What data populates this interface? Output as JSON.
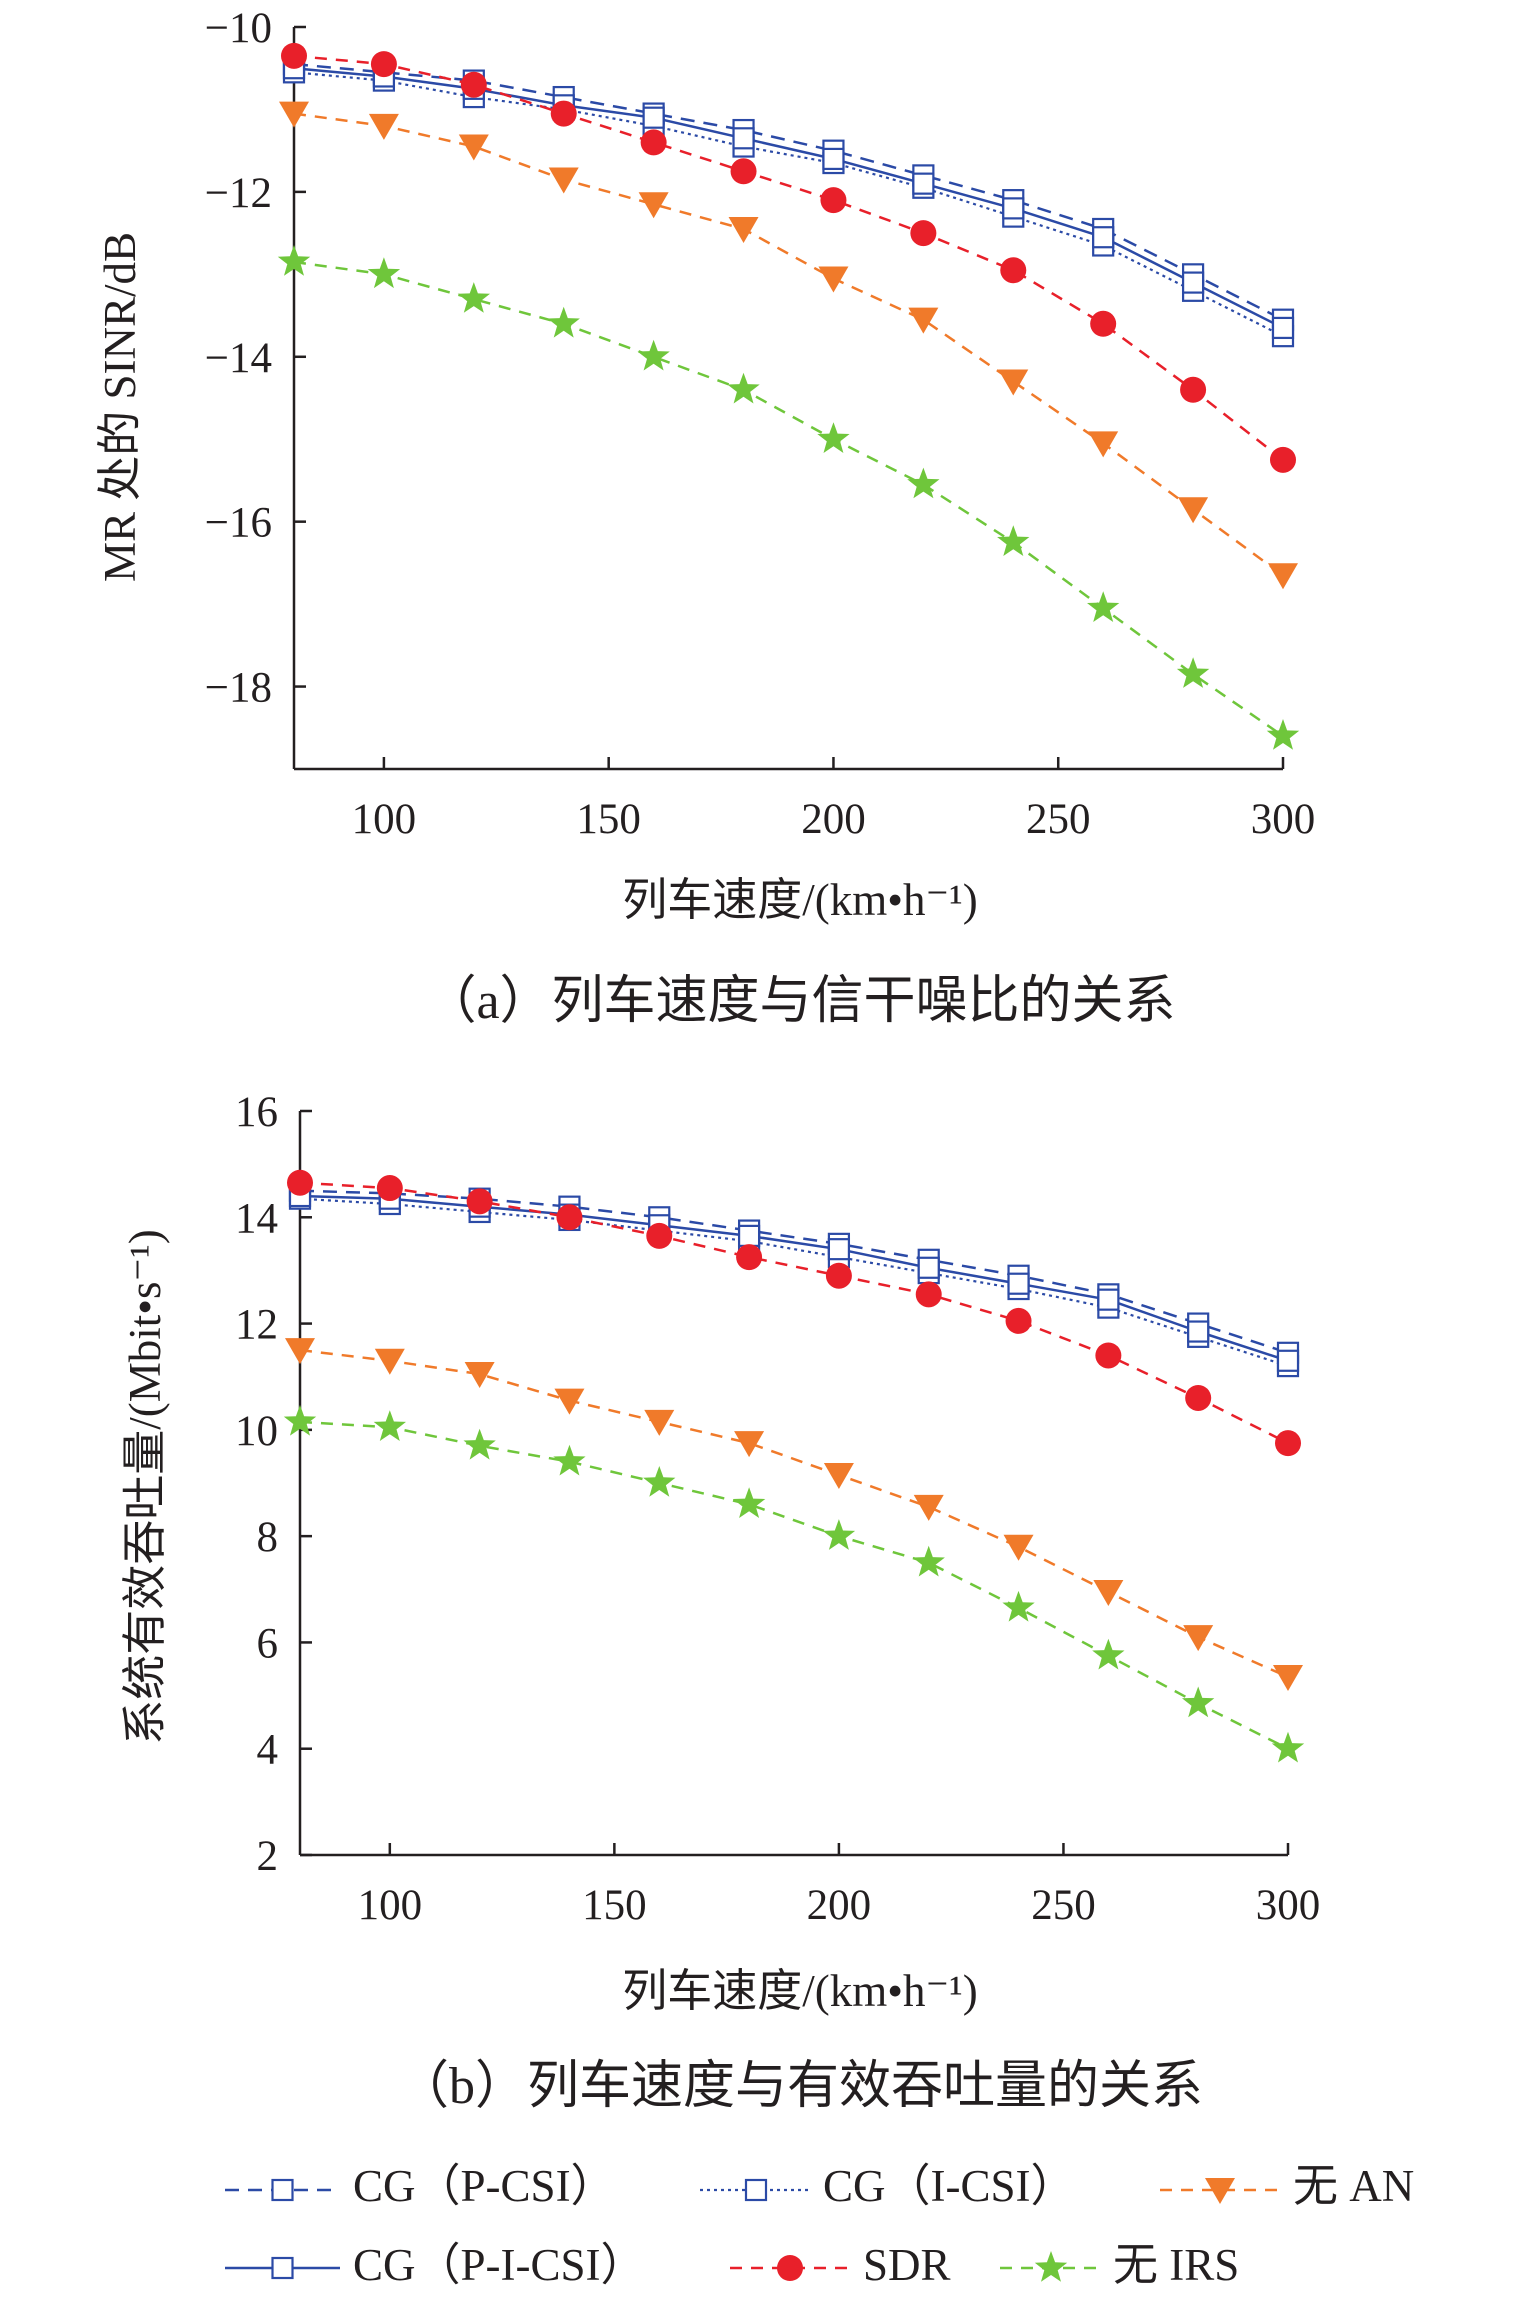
{
  "colors": {
    "cg": "#2b4aa6",
    "no_an": "#f07a2a",
    "sdr": "#e8202a",
    "no_irs": "#6fc63b",
    "axis": "#231f20"
  },
  "legend": {
    "cg_p_csi": "CG（P-CSI）",
    "cg_i_csi": "CG（I-CSI）",
    "no_an": "无 AN",
    "cg_p_i_csi": "CG（P-I-CSI）",
    "sdr": "SDR",
    "no_irs": "无 IRS"
  },
  "chart_data": [
    {
      "type": "line",
      "caption": "（a）列车速度与信干噪比的关系",
      "xlabel": "列车速度/(km•h⁻¹)",
      "ylabel": "MR 处的 SINR/dB",
      "xlim": [
        80,
        300
      ],
      "ylim": [
        -19,
        -10
      ],
      "xticks": [
        100,
        150,
        200,
        250,
        300
      ],
      "yticks": [
        -10,
        -12,
        -14,
        -16,
        -18
      ],
      "ytick_labels": [
        "−10",
        "−12",
        "−14",
        "−16",
        "−18"
      ],
      "x": [
        80,
        100,
        120,
        140,
        160,
        180,
        200,
        220,
        240,
        260,
        280,
        300
      ],
      "series": [
        {
          "key": "cg_p_csi",
          "name": "CG（P-CSI）",
          "values": [
            -10.45,
            -10.55,
            -10.65,
            -10.85,
            -11.05,
            -11.25,
            -11.5,
            -11.8,
            -12.1,
            -12.45,
            -13.0,
            -13.55
          ]
        },
        {
          "key": "cg_i_csi",
          "name": "CG（I-CSI）",
          "values": [
            -10.55,
            -10.65,
            -10.85,
            -11.0,
            -11.2,
            -11.45,
            -11.65,
            -11.95,
            -12.3,
            -12.65,
            -13.2,
            -13.75
          ]
        },
        {
          "key": "cg_p_i_csi",
          "name": "CG（P-I-CSI）",
          "values": [
            -10.5,
            -10.6,
            -10.75,
            -10.95,
            -11.1,
            -11.35,
            -11.6,
            -11.9,
            -12.2,
            -12.55,
            -13.1,
            -13.65
          ]
        },
        {
          "key": "sdr",
          "name": "SDR",
          "values": [
            -10.35,
            -10.45,
            -10.7,
            -11.05,
            -11.4,
            -11.75,
            -12.1,
            -12.5,
            -12.95,
            -13.6,
            -14.4,
            -15.25
          ]
        },
        {
          "key": "no_an",
          "name": "无 AN",
          "values": [
            -11.05,
            -11.2,
            -11.45,
            -11.85,
            -12.15,
            -12.45,
            -13.05,
            -13.55,
            -14.3,
            -15.05,
            -15.85,
            -16.65
          ]
        },
        {
          "key": "no_irs",
          "name": "无 IRS",
          "values": [
            -12.85,
            -13.0,
            -13.3,
            -13.6,
            -14.0,
            -14.4,
            -15.0,
            -15.55,
            -16.25,
            -17.05,
            -17.85,
            -18.6
          ]
        }
      ]
    },
    {
      "type": "line",
      "caption": "（b）列车速度与有效吞吐量的关系",
      "xlabel": "列车速度/(km•h⁻¹)",
      "ylabel": "系统有效吞吐量/(Mbit•s⁻¹)",
      "xlim": [
        80,
        300
      ],
      "ylim": [
        2,
        16
      ],
      "xticks": [
        100,
        150,
        200,
        250,
        300
      ],
      "yticks": [
        2,
        4,
        6,
        8,
        10,
        12,
        14,
        16
      ],
      "ytick_labels": [
        "2",
        "4",
        "6",
        "8",
        "10",
        "12",
        "14",
        "16"
      ],
      "x": [
        80,
        100,
        120,
        140,
        160,
        180,
        200,
        220,
        240,
        260,
        280,
        300
      ],
      "series": [
        {
          "key": "cg_p_csi",
          "name": "CG（P-CSI）",
          "values": [
            14.5,
            14.45,
            14.35,
            14.2,
            14.0,
            13.75,
            13.5,
            13.2,
            12.9,
            12.55,
            12.0,
            11.45
          ]
        },
        {
          "key": "cg_i_csi",
          "name": "CG（I-CSI）",
          "values": [
            14.35,
            14.25,
            14.1,
            13.95,
            13.75,
            13.55,
            13.25,
            12.95,
            12.65,
            12.3,
            11.75,
            11.2
          ]
        },
        {
          "key": "cg_p_i_csi",
          "name": "CG（P-I-CSI）",
          "values": [
            14.4,
            14.35,
            14.2,
            14.05,
            13.85,
            13.65,
            13.4,
            13.05,
            12.75,
            12.45,
            11.85,
            11.3
          ]
        },
        {
          "key": "sdr",
          "name": "SDR",
          "values": [
            14.65,
            14.55,
            14.3,
            14.0,
            13.65,
            13.25,
            12.9,
            12.55,
            12.05,
            11.4,
            10.6,
            9.75
          ]
        },
        {
          "key": "no_an",
          "name": "无 AN",
          "values": [
            11.5,
            11.3,
            11.05,
            10.55,
            10.15,
            9.75,
            9.15,
            8.55,
            7.8,
            6.95,
            6.1,
            5.35
          ]
        },
        {
          "key": "no_irs",
          "name": "无 IRS",
          "values": [
            10.15,
            10.05,
            9.7,
            9.4,
            9.0,
            8.6,
            8.0,
            7.5,
            6.65,
            5.75,
            4.85,
            4.0
          ]
        }
      ]
    }
  ]
}
